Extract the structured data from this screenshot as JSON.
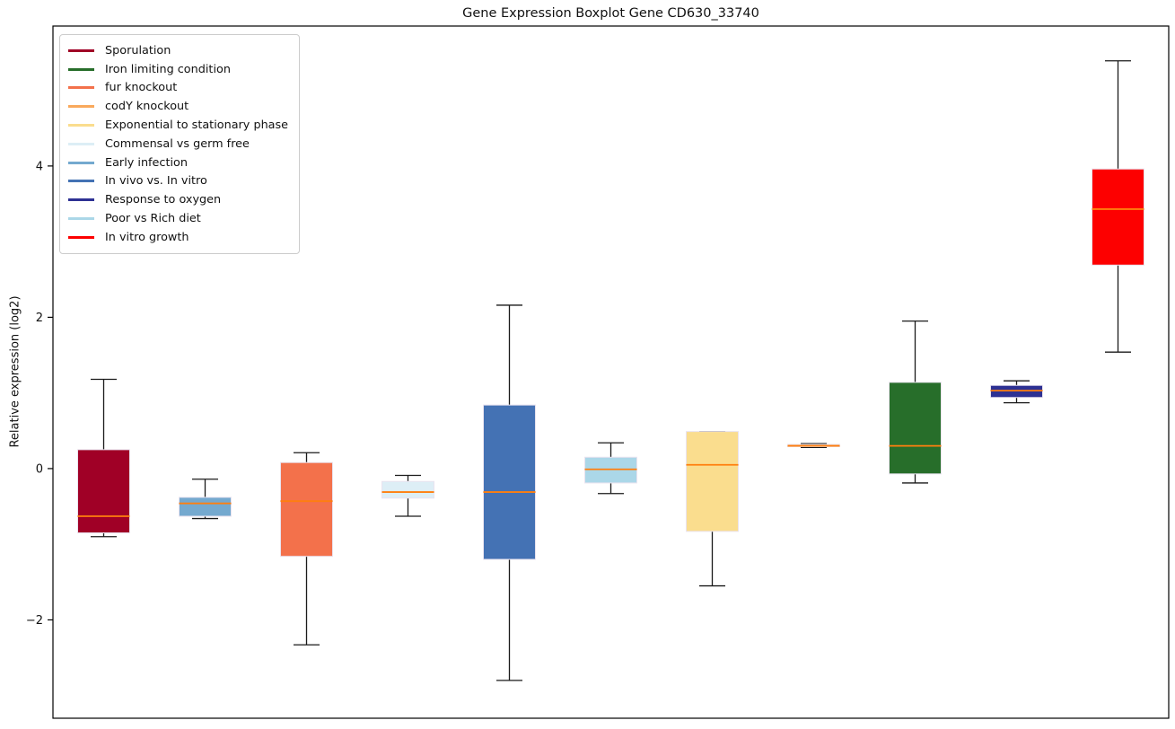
{
  "title": "Gene Expression Boxplot Gene CD630_33740",
  "ylabel": "Relative expression (log2)",
  "frame_color": "#000000",
  "median_color": "#FF7F0E",
  "whisker_color": "#1a1a1a",
  "box_edge_color": "#e9e3ef",
  "legend": [
    {
      "label": "Sporulation",
      "color": "#A00026"
    },
    {
      "label": "Iron limiting condition",
      "color": "#276E2A"
    },
    {
      "label": "fur knockout",
      "color": "#F3714B"
    },
    {
      "label": "codY knockout",
      "color": "#F9A95C"
    },
    {
      "label": "Exponential to stationary phase",
      "color": "#FADD8E"
    },
    {
      "label": "Commensal vs germ free",
      "color": "#DDEEF6"
    },
    {
      "label": "Early infection",
      "color": "#74A9CF"
    },
    {
      "label": "In vivo vs. In vitro",
      "color": "#4472B4"
    },
    {
      "label": "Response to oxygen",
      "color": "#2D3193"
    },
    {
      "label": "Poor vs Rich diet",
      "color": "#ABD7E8"
    },
    {
      "label": "In vitro growth",
      "color": "#FD0000"
    }
  ],
  "chart_data": {
    "type": "boxplot",
    "title": "Gene Expression Boxplot Gene CD630_33740",
    "xlabel": "",
    "ylabel": "Relative expression (log2)",
    "ylim": [
      -3.3,
      5.85
    ],
    "yticks": [
      -2,
      0,
      2,
      4
    ],
    "grid": false,
    "legend_position": "upper-left",
    "categories": [
      "Sporulation",
      "Early infection",
      "fur knockout",
      "Commensal vs germ free",
      "In vivo vs. In vitro",
      "Poor vs Rich diet",
      "Exponential to stationary phase",
      "codY knockout",
      "Iron limiting condition",
      "Response to oxygen",
      "In vitro growth"
    ],
    "boxes": [
      {
        "name": "Sporulation",
        "color": "#A00026",
        "whisker_low": -0.9,
        "q1": -0.85,
        "median": -0.63,
        "q3": 0.25,
        "whisker_high": 1.18
      },
      {
        "name": "Early infection",
        "color": "#74A9CF",
        "whisker_low": -0.66,
        "q1": -0.63,
        "median": -0.46,
        "q3": -0.38,
        "whisker_high": -0.14
      },
      {
        "name": "fur knockout",
        "color": "#F3714B",
        "whisker_low": -2.33,
        "q1": -1.16,
        "median": -0.43,
        "q3": 0.08,
        "whisker_high": 0.21
      },
      {
        "name": "Commensal vs germ free",
        "color": "#DDEEF6",
        "whisker_low": -0.63,
        "q1": -0.39,
        "median": -0.31,
        "q3": -0.17,
        "whisker_high": -0.09
      },
      {
        "name": "In vivo vs. In vitro",
        "color": "#4472B4",
        "whisker_low": -2.8,
        "q1": -1.2,
        "median": -0.31,
        "q3": 0.84,
        "whisker_high": 2.16
      },
      {
        "name": "Poor vs Rich diet",
        "color": "#ABD7E8",
        "whisker_low": -0.33,
        "q1": -0.19,
        "median": -0.01,
        "q3": 0.15,
        "whisker_high": 0.34
      },
      {
        "name": "Exponential to stationary phase",
        "color": "#FADD8E",
        "whisker_low": -1.55,
        "q1": -0.83,
        "median": 0.05,
        "q3": 0.49,
        "whisker_high": 0.49
      },
      {
        "name": "codY knockout",
        "color": "#F9A95C",
        "whisker_low": 0.28,
        "q1": 0.29,
        "median": 0.3,
        "q3": 0.32,
        "whisker_high": 0.33
      },
      {
        "name": "Iron limiting condition",
        "color": "#276E2A",
        "whisker_low": -0.19,
        "q1": -0.07,
        "median": 0.3,
        "q3": 1.14,
        "whisker_high": 1.95
      },
      {
        "name": "Response to oxygen",
        "color": "#2D3193",
        "whisker_low": 0.87,
        "q1": 0.94,
        "median": 1.03,
        "q3": 1.1,
        "whisker_high": 1.16
      },
      {
        "name": "In vitro growth",
        "color": "#FD0000",
        "whisker_low": 1.54,
        "q1": 2.69,
        "median": 3.43,
        "q3": 3.96,
        "whisker_high": 5.39
      }
    ]
  }
}
